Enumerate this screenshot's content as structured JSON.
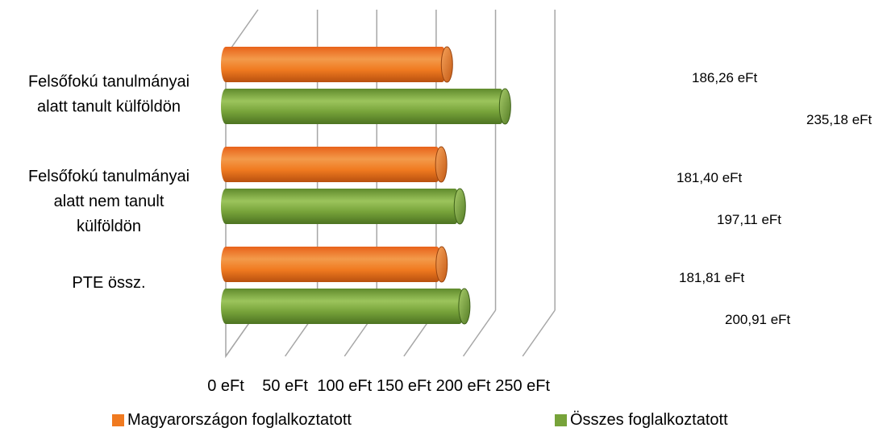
{
  "chart_data": {
    "type": "bar",
    "orientation": "horizontal",
    "style": "3d-cylinder",
    "categories": [
      [
        "Felsőfokú tanulmányai",
        "alatt tanult külföldön"
      ],
      [
        "Felsőfokú tanulmányai",
        "alatt nem tanult",
        "külföldön"
      ],
      [
        "PTE össz."
      ]
    ],
    "series": [
      {
        "name": "Magyarországon foglalkoztatott",
        "color": "#f07a20",
        "values": [
          186.26,
          181.4,
          181.81
        ],
        "labels": [
          "186,26 eFt",
          "181,40 eFt",
          "181,81 eFt"
        ]
      },
      {
        "name": "Összes foglalkoztatott",
        "color": "#77a33a",
        "values": [
          235.18,
          197.11,
          200.91
        ],
        "labels": [
          "235,18 eFt",
          "197,11 eFt",
          "200,91 eFt"
        ]
      }
    ],
    "xlim": [
      0,
      250
    ],
    "xticks": [
      0,
      50,
      100,
      150,
      200,
      250
    ],
    "xtick_labels": [
      "0 eFt",
      "50 eFt",
      "100 eFt",
      "150 eFt",
      "200 eFt",
      "250 eFt"
    ],
    "grid": true,
    "legend_position": "bottom"
  }
}
